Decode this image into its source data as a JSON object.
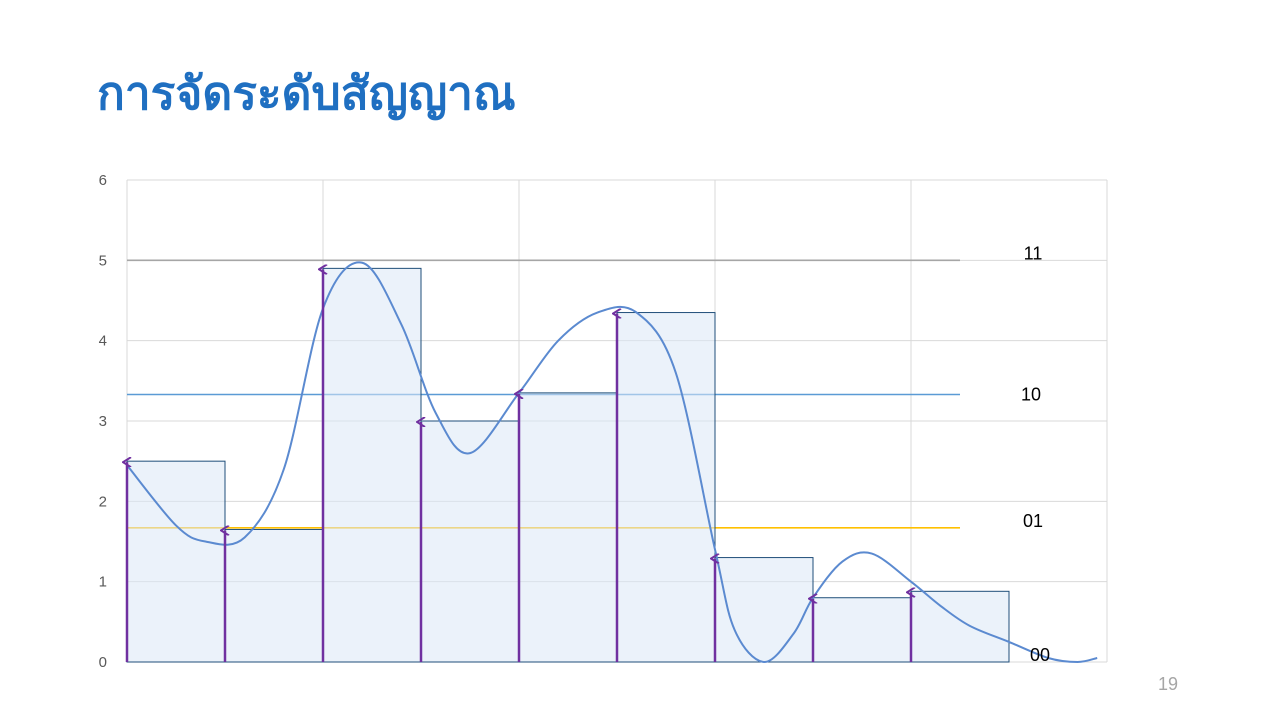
{
  "slide": {
    "title": "การจัดระดับสัญญาณ",
    "page_number": "19"
  },
  "chart_data": {
    "type": "line",
    "ylim": [
      0,
      6
    ],
    "xlim": [
      0,
      10
    ],
    "y_ticks": [
      "0",
      "1",
      "2",
      "3",
      "4",
      "5",
      "6"
    ],
    "x_grid": [
      0,
      2,
      4,
      6,
      8,
      10
    ],
    "grid": true,
    "colors": {
      "signal": "#5b8ad0",
      "hold": "#1f4e79",
      "hold_fill": "#dbe8f5",
      "sample_arrow": "#7030a0",
      "level_11": "#a6a6a6",
      "level_10": "#5b9bd5",
      "level_01": "#ffc000",
      "level_00": "#a6a6a6",
      "grid": "#d9d9d9"
    },
    "signal": {
      "x": [
        0,
        0.5,
        0.8,
        1.2,
        1.6,
        2.0,
        2.4,
        2.8,
        3.15,
        3.5,
        4.0,
        4.4,
        4.8,
        5.2,
        5.6,
        6.0,
        6.2,
        6.5,
        6.8,
        7.0,
        7.3,
        7.6,
        8.0,
        8.3,
        8.6,
        9.0,
        9.4,
        9.7,
        9.9
      ],
      "y": [
        2.45,
        1.7,
        1.5,
        1.55,
        2.4,
        4.4,
        4.97,
        4.2,
        3.1,
        2.6,
        3.35,
        4.0,
        4.35,
        4.35,
        3.6,
        1.4,
        0.4,
        0.0,
        0.35,
        0.8,
        1.25,
        1.35,
        1.0,
        0.7,
        0.45,
        0.25,
        0.05,
        0.0,
        0.05
      ]
    },
    "samples": [
      {
        "x": 0,
        "y": 2.5
      },
      {
        "x": 1,
        "y": 1.65
      },
      {
        "x": 2,
        "y": 4.9
      },
      {
        "x": 3,
        "y": 3.0
      },
      {
        "x": 4,
        "y": 3.35
      },
      {
        "x": 5,
        "y": 4.35
      },
      {
        "x": 6,
        "y": 1.3
      },
      {
        "x": 7,
        "y": 0.8
      },
      {
        "x": 8,
        "y": 0.88
      }
    ],
    "levels": [
      {
        "label": "11",
        "y": 5.0,
        "key": "level_11"
      },
      {
        "label": "10",
        "y": 3.33,
        "key": "level_10"
      },
      {
        "label": "01",
        "y": 1.67,
        "key": "level_01"
      },
      {
        "label": "00",
        "y": 0.0,
        "key": "level_00"
      }
    ]
  }
}
